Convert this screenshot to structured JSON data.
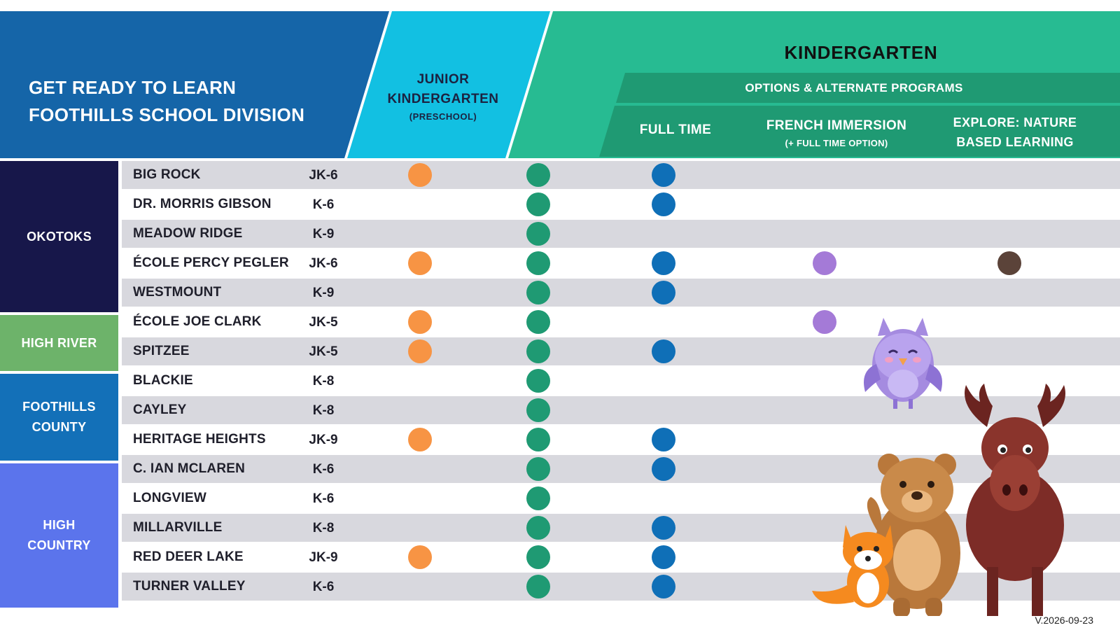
{
  "header": {
    "title_line1": "GET READY TO LEARN",
    "title_line2": "FOOTHILLS SCHOOL DIVISION",
    "jk_line1": "JUNIOR",
    "jk_line2": "KINDERGARTEN",
    "jk_sub": "(PRESCHOOL)",
    "kindergarten": "KINDERGARTEN",
    "options": "OPTIONS & ALTERNATE PROGRAMS",
    "full_time": "FULL TIME",
    "french_immersion": "FRENCH IMMERSION",
    "french_sub": "(+ FULL TIME OPTION)",
    "explore_line1": "EXPLORE: NATURE",
    "explore_line2": "BASED LEARNING"
  },
  "colors": {
    "title_band": "#1565a8",
    "jk_band": "#12c0e2",
    "kindergarten_band": "#27bb92",
    "options_band": "#1f9a73",
    "dot_jk": "#f79444",
    "dot_kindergarten": "#1f9a73",
    "dot_full_time": "#0f6fb7",
    "dot_french": "#a47ad7",
    "dot_explore": "#5b4339",
    "okotoks": "#17174a",
    "high_river": "#6db36a",
    "foothills_county": "#1370b8",
    "high_country": "#5b74ec"
  },
  "regions": [
    {
      "name": "OKOTOKS"
    },
    {
      "name": "HIGH RIVER"
    },
    {
      "name": "FOOTHILLS\nCOUNTY"
    },
    {
      "name": "HIGH\nCOUNTRY"
    }
  ],
  "schools": [
    {
      "name": "BIG ROCK",
      "grades": "JK-6",
      "jk": true,
      "kindergarten": true,
      "full_time": true,
      "french": false,
      "explore": false
    },
    {
      "name": "DR. MORRIS GIBSON",
      "grades": "K-6",
      "jk": false,
      "kindergarten": true,
      "full_time": true,
      "french": false,
      "explore": false
    },
    {
      "name": "MEADOW RIDGE",
      "grades": "K-9",
      "jk": false,
      "kindergarten": true,
      "full_time": false,
      "french": false,
      "explore": false
    },
    {
      "name": "ÉCOLE PERCY PEGLER",
      "grades": "JK-6",
      "jk": true,
      "kindergarten": true,
      "full_time": true,
      "french": true,
      "explore": true
    },
    {
      "name": "WESTMOUNT",
      "grades": "K-9",
      "jk": false,
      "kindergarten": true,
      "full_time": true,
      "french": false,
      "explore": false
    },
    {
      "name": "ÉCOLE JOE CLARK",
      "grades": "JK-5",
      "jk": true,
      "kindergarten": true,
      "full_time": false,
      "french": true,
      "explore": false
    },
    {
      "name": "SPITZEE",
      "grades": "JK-5",
      "jk": true,
      "kindergarten": true,
      "full_time": true,
      "french": false,
      "explore": false
    },
    {
      "name": "BLACKIE",
      "grades": "K-8",
      "jk": false,
      "kindergarten": true,
      "full_time": false,
      "french": false,
      "explore": false
    },
    {
      "name": "CAYLEY",
      "grades": "K-8",
      "jk": false,
      "kindergarten": true,
      "full_time": false,
      "french": false,
      "explore": false
    },
    {
      "name": "HERITAGE HEIGHTS",
      "grades": "JK-9",
      "jk": true,
      "kindergarten": true,
      "full_time": true,
      "french": false,
      "explore": false
    },
    {
      "name": "C. IAN MCLAREN",
      "grades": "K-6",
      "jk": false,
      "kindergarten": true,
      "full_time": true,
      "french": false,
      "explore": false
    },
    {
      "name": "LONGVIEW",
      "grades": "K-6",
      "jk": false,
      "kindergarten": true,
      "full_time": false,
      "french": false,
      "explore": false
    },
    {
      "name": "MILLARVILLE",
      "grades": "K-8",
      "jk": false,
      "kindergarten": true,
      "full_time": true,
      "french": false,
      "explore": false
    },
    {
      "name": "RED DEER LAKE",
      "grades": "JK-9",
      "jk": true,
      "kindergarten": true,
      "full_time": true,
      "french": false,
      "explore": false
    },
    {
      "name": "TURNER VALLEY",
      "grades": "K-6",
      "jk": false,
      "kindergarten": true,
      "full_time": true,
      "french": false,
      "explore": false
    }
  ],
  "illustration": [
    "owl-illustration",
    "moose-illustration",
    "bear-illustration",
    "fox-illustration"
  ],
  "footer": {
    "version": "V.2026-09-23"
  }
}
